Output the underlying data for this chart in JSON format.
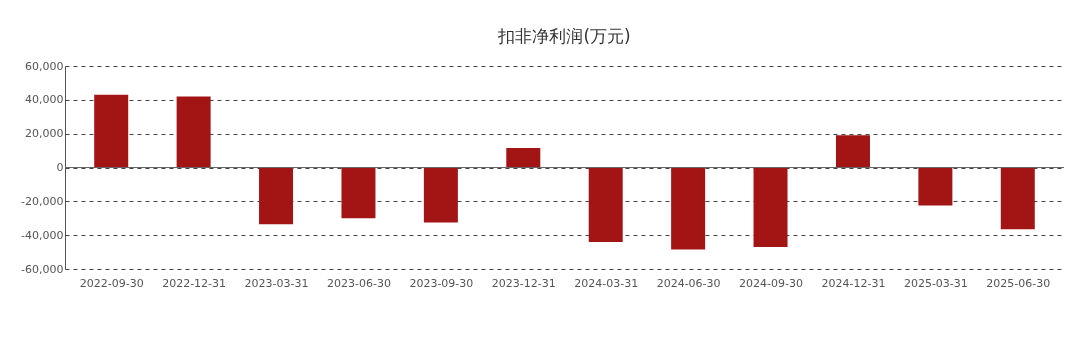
{
  "chart_data": {
    "type": "bar",
    "title": "扣非净利润(万元)",
    "categories": [
      "2022-09-30",
      "2022-12-31",
      "2023-03-31",
      "2023-06-30",
      "2023-09-30",
      "2023-12-31",
      "2024-03-31",
      "2024-06-30",
      "2024-09-30",
      "2024-12-31",
      "2025-03-31",
      "2025-06-30"
    ],
    "values": [
      43000,
      42000,
      -33500,
      -30000,
      -32500,
      11500,
      -44000,
      -48500,
      -47000,
      19000,
      -22500,
      -36500
    ],
    "color": "#a31515",
    "ylim": [
      -60000,
      60000
    ],
    "yticks": [
      {
        "value": -60000,
        "label": "-60,000"
      },
      {
        "value": -40000,
        "label": "-40,000"
      },
      {
        "value": -20000,
        "label": "-20,000"
      },
      0,
      {
        "value": 20000,
        "label": "20,000"
      },
      {
        "value": 40000,
        "label": "40,000"
      },
      {
        "value": 60000,
        "label": "60,000"
      }
    ],
    "grid": "y"
  }
}
